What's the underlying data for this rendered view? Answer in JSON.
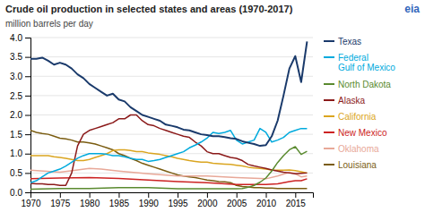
{
  "chart_data": {
    "type": "line",
    "title": "Crude oil production in selected states and areas (1970-2017)",
    "ylabel": "million barrels per day",
    "annotations": [
      "eia"
    ],
    "xlim": [
      1970,
      2018
    ],
    "ylim": [
      0.0,
      4.0
    ],
    "xticks": [
      1970,
      1975,
      1980,
      1985,
      1990,
      1995,
      2000,
      2005,
      2010,
      2015
    ],
    "yticks": [
      {
        "value": 0.0,
        "label": "0.0"
      },
      0.5,
      {
        "value": 1.0,
        "label": "1.0"
      },
      1.5,
      {
        "value": 2.0,
        "label": "2.0"
      },
      2.5,
      {
        "value": 3.0,
        "label": "3.0"
      },
      3.5,
      {
        "value": 4.0,
        "label": "4.0"
      }
    ],
    "grid": true,
    "legend": "right",
    "series": [
      {
        "name": "Texas",
        "color": "#1a3a6b",
        "x": [
          1970,
          1971,
          1972,
          1973,
          1974,
          1975,
          1976,
          1977,
          1978,
          1979,
          1980,
          1981,
          1982,
          1983,
          1984,
          1985,
          1986,
          1987,
          1988,
          1989,
          1990,
          1991,
          1992,
          1993,
          1994,
          1995,
          1996,
          1997,
          1998,
          1999,
          2000,
          2001,
          2002,
          2003,
          2004,
          2005,
          2006,
          2007,
          2008,
          2009,
          2010,
          2011,
          2012,
          2013,
          2014,
          2015,
          2016,
          2017
        ],
        "values": [
          3.45,
          3.45,
          3.48,
          3.4,
          3.3,
          3.35,
          3.3,
          3.2,
          3.05,
          2.95,
          2.8,
          2.7,
          2.6,
          2.5,
          2.55,
          2.4,
          2.35,
          2.2,
          2.1,
          2.0,
          1.95,
          1.9,
          1.85,
          1.75,
          1.72,
          1.68,
          1.62,
          1.6,
          1.55,
          1.5,
          1.48,
          1.45,
          1.45,
          1.43,
          1.4,
          1.38,
          1.32,
          1.28,
          1.25,
          1.2,
          1.22,
          1.45,
          1.85,
          2.5,
          3.2,
          3.52,
          2.85,
          3.9
        ]
      },
      {
        "name": "Federal\nGulf of Mexico",
        "color": "#00aadd",
        "x": [
          1970,
          1971,
          1972,
          1973,
          1974,
          1975,
          1976,
          1977,
          1978,
          1979,
          1980,
          1981,
          1982,
          1983,
          1984,
          1985,
          1986,
          1987,
          1988,
          1989,
          1990,
          1991,
          1992,
          1993,
          1994,
          1995,
          1996,
          1997,
          1998,
          1999,
          2000,
          2001,
          2002,
          2003,
          2004,
          2005,
          2006,
          2007,
          2008,
          2009,
          2010,
          2011,
          2012,
          2013,
          2014,
          2015,
          2016,
          2017
        ],
        "values": [
          0.25,
          0.3,
          0.4,
          0.5,
          0.55,
          0.6,
          0.68,
          0.78,
          0.88,
          0.95,
          1.0,
          1.0,
          1.0,
          0.98,
          0.95,
          0.95,
          0.92,
          0.88,
          0.85,
          0.85,
          0.8,
          0.82,
          0.85,
          0.9,
          0.95,
          1.0,
          1.05,
          1.15,
          1.22,
          1.3,
          1.4,
          1.55,
          1.52,
          1.55,
          1.6,
          1.35,
          1.25,
          1.3,
          1.35,
          1.65,
          1.55,
          1.3,
          1.35,
          1.42,
          1.55,
          1.6,
          1.65,
          1.65
        ]
      },
      {
        "name": "North Dakota",
        "color": "#5a8a2f",
        "x": [
          1970,
          1975,
          1980,
          1985,
          1990,
          1995,
          2000,
          2005,
          2006,
          2007,
          2008,
          2009,
          2010,
          2011,
          2012,
          2013,
          2014,
          2015,
          2016,
          2017
        ],
        "values": [
          0.08,
          0.1,
          0.1,
          0.12,
          0.12,
          0.09,
          0.09,
          0.09,
          0.1,
          0.13,
          0.18,
          0.26,
          0.37,
          0.55,
          0.77,
          0.95,
          1.1,
          1.18,
          0.98,
          1.06
        ]
      },
      {
        "name": "Alaska",
        "color": "#8b1a1a",
        "x": [
          1970,
          1971,
          1972,
          1973,
          1974,
          1975,
          1976,
          1977,
          1978,
          1979,
          1980,
          1981,
          1982,
          1983,
          1984,
          1985,
          1986,
          1987,
          1988,
          1989,
          1990,
          1991,
          1992,
          1993,
          1994,
          1995,
          1996,
          1997,
          1998,
          1999,
          2000,
          2001,
          2002,
          2003,
          2004,
          2005,
          2006,
          2007,
          2008,
          2009,
          2010,
          2011,
          2012,
          2013,
          2014,
          2015,
          2016,
          2017
        ],
        "values": [
          0.23,
          0.22,
          0.22,
          0.2,
          0.2,
          0.18,
          0.18,
          0.5,
          1.2,
          1.5,
          1.6,
          1.65,
          1.7,
          1.75,
          1.8,
          1.9,
          1.9,
          2.0,
          2.0,
          1.85,
          1.75,
          1.72,
          1.65,
          1.6,
          1.55,
          1.5,
          1.45,
          1.42,
          1.3,
          1.2,
          1.05,
          1.0,
          1.0,
          0.95,
          0.9,
          0.88,
          0.82,
          0.72,
          0.68,
          0.65,
          0.62,
          0.58,
          0.55,
          0.52,
          0.5,
          0.48,
          0.49,
          0.5
        ]
      },
      {
        "name": "California",
        "color": "#daa520",
        "x": [
          1970,
          1971,
          1972,
          1973,
          1974,
          1975,
          1976,
          1977,
          1978,
          1979,
          1980,
          1981,
          1982,
          1983,
          1984,
          1985,
          1986,
          1987,
          1988,
          1989,
          1990,
          1991,
          1992,
          1993,
          1994,
          1995,
          1996,
          1997,
          1998,
          1999,
          2000,
          2001,
          2002,
          2003,
          2004,
          2005,
          2006,
          2007,
          2008,
          2009,
          2010,
          2011,
          2012,
          2013,
          2014,
          2015,
          2016,
          2017
        ],
        "values": [
          0.95,
          0.95,
          0.95,
          0.95,
          0.92,
          0.9,
          0.88,
          0.85,
          0.82,
          0.82,
          0.85,
          0.9,
          0.95,
          1.0,
          1.08,
          1.1,
          1.1,
          1.08,
          1.05,
          1.05,
          1.02,
          1.0,
          0.98,
          0.95,
          0.92,
          0.88,
          0.85,
          0.82,
          0.8,
          0.78,
          0.78,
          0.75,
          0.74,
          0.73,
          0.72,
          0.7,
          0.68,
          0.65,
          0.63,
          0.62,
          0.6,
          0.58,
          0.57,
          0.57,
          0.58,
          0.56,
          0.53,
          0.5
        ]
      },
      {
        "name": "New Mexico",
        "color": "#cc2222",
        "x": [
          1970,
          1975,
          1980,
          1985,
          1990,
          1995,
          2000,
          2005,
          2010,
          2012,
          2014,
          2015,
          2016,
          2017
        ],
        "values": [
          0.35,
          0.37,
          0.38,
          0.36,
          0.32,
          0.28,
          0.25,
          0.2,
          0.2,
          0.22,
          0.28,
          0.3,
          0.3,
          0.35
        ]
      },
      {
        "name": "Oklahoma",
        "color": "#e8a898",
        "x": [
          1970,
          1975,
          1978,
          1980,
          1982,
          1985,
          1990,
          1995,
          2000,
          2005,
          2010,
          2012,
          2014,
          2015,
          2016,
          2017
        ],
        "values": [
          0.57,
          0.52,
          0.58,
          0.62,
          0.6,
          0.55,
          0.48,
          0.42,
          0.42,
          0.38,
          0.35,
          0.42,
          0.52,
          0.48,
          0.4,
          0.42
        ]
      },
      {
        "name": "Louisiana",
        "color": "#7a5c10",
        "x": [
          1970,
          1971,
          1972,
          1973,
          1974,
          1975,
          1976,
          1977,
          1978,
          1979,
          1980,
          1981,
          1982,
          1983,
          1984,
          1985,
          1986,
          1987,
          1988,
          1989,
          1990,
          1991,
          1992,
          1993,
          1994,
          1995,
          1996,
          1997,
          1998,
          1999,
          2000,
          2001,
          2002,
          2003,
          2004,
          2005,
          2006,
          2007,
          2008,
          2009,
          2010,
          2011,
          2012,
          2013,
          2014,
          2015,
          2016,
          2017
        ],
        "values": [
          1.6,
          1.55,
          1.52,
          1.5,
          1.45,
          1.4,
          1.38,
          1.35,
          1.3,
          1.3,
          1.28,
          1.25,
          1.2,
          1.15,
          1.1,
          1.0,
          0.95,
          0.88,
          0.82,
          0.75,
          0.7,
          0.65,
          0.6,
          0.55,
          0.5,
          0.45,
          0.42,
          0.4,
          0.38,
          0.35,
          0.32,
          0.3,
          0.28,
          0.27,
          0.25,
          0.18,
          0.15,
          0.14,
          0.12,
          0.12,
          0.11,
          0.11,
          0.1,
          0.1,
          0.1,
          0.1,
          0.1,
          0.1
        ]
      }
    ]
  }
}
